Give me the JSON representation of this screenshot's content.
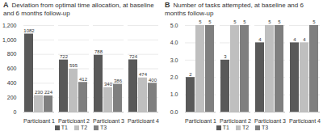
{
  "chart_data": [
    {
      "type": "bar",
      "panel_label": "A",
      "title": "Deviation from optimal time allocation, at baseline and 6 months follow-up",
      "categories": [
        "Participant 1",
        "Participant 2",
        "Participant 3",
        "Participant 4"
      ],
      "series": [
        {
          "name": "T1",
          "color": "#595959",
          "values": [
            1082,
            722,
            788,
            724
          ]
        },
        {
          "name": "T2",
          "color": "#bfbfbf",
          "values": [
            230,
            595,
            340,
            474
          ]
        },
        {
          "name": "T3",
          "color": "#7f7f7f",
          "values": [
            224,
            412,
            386,
            400
          ]
        }
      ],
      "ylim": [
        0,
        1200
      ],
      "yticks": [
        0,
        200,
        400,
        600,
        800,
        1000,
        1200
      ],
      "grid": true,
      "data_labels": true,
      "legend": "bottom"
    },
    {
      "type": "bar",
      "panel_label": "B",
      "title": "Number of tasks attempted, at baseline and 6 months follow-up",
      "categories": [
        "Participant 1",
        "Participant 2",
        "Participant 3",
        "Participant 4"
      ],
      "series": [
        {
          "name": "T1",
          "color": "#595959",
          "values": [
            2,
            3,
            4,
            4
          ]
        },
        {
          "name": "T2",
          "color": "#bfbfbf",
          "values": [
            5,
            5,
            5,
            4
          ]
        },
        {
          "name": "T3",
          "color": "#7f7f7f",
          "values": [
            5,
            5,
            5,
            5
          ]
        }
      ],
      "ylim": [
        0,
        5
      ],
      "yticks": [
        0,
        1,
        2,
        3,
        4,
        5
      ],
      "grid": true,
      "data_labels": true,
      "legend": "bottom"
    }
  ]
}
